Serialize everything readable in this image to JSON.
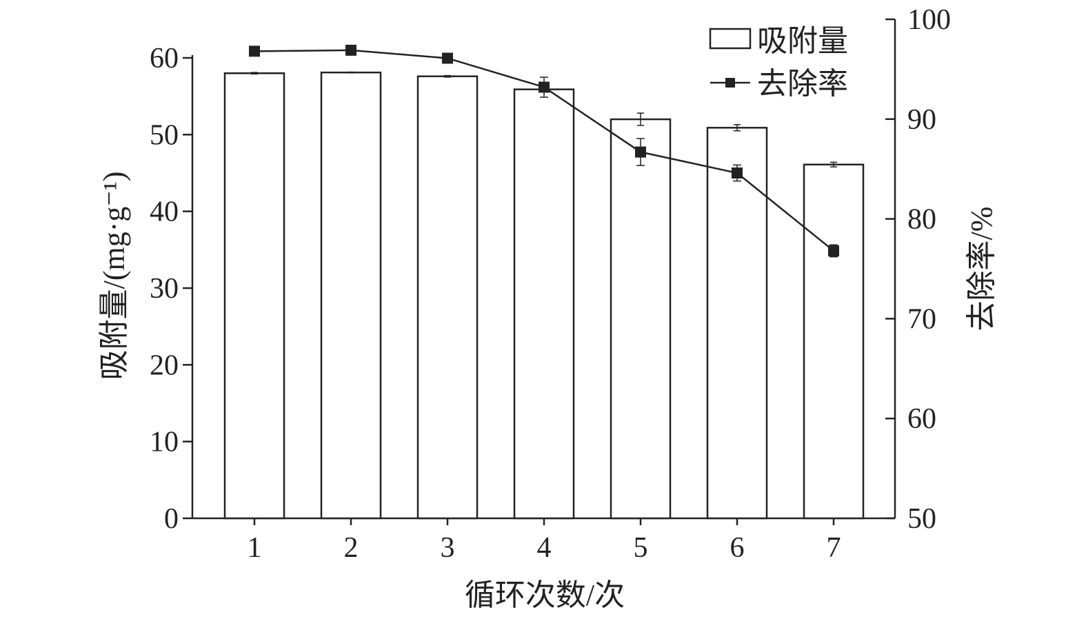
{
  "chart_data": {
    "type": "bar+line",
    "categories": [
      "1",
      "2",
      "3",
      "4",
      "5",
      "6",
      "7"
    ],
    "xlabel": "循环次数/次",
    "ylabel_left": "吸附量/(mg·g⁻¹)",
    "ylabel_right": "去除率/%",
    "ylim_left": [
      0,
      60
    ],
    "yticks_left": [
      0,
      10,
      20,
      30,
      40,
      50,
      60
    ],
    "ylim_right": [
      50,
      100
    ],
    "yticks_right": [
      50,
      60,
      70,
      80,
      90,
      100
    ],
    "legend_position": "top-right",
    "grid": false,
    "series": [
      {
        "name": "吸附量",
        "type": "bar",
        "axis": "left",
        "values": [
          58.0,
          58.1,
          57.6,
          55.9,
          52.0,
          50.9,
          46.1
        ],
        "errors": [
          0.1,
          0.05,
          0.1,
          0.1,
          0.8,
          0.4,
          0.3
        ]
      },
      {
        "name": "去除率",
        "type": "line",
        "axis": "right",
        "values": [
          96.8,
          96.9,
          96.1,
          93.2,
          86.7,
          84.6,
          76.8
        ],
        "errors": [
          0.1,
          0.1,
          0.1,
          1.0,
          1.35,
          0.8,
          0.6
        ]
      }
    ],
    "colors": {
      "bar_fill": "#ffffff",
      "stroke": "#222222",
      "marker": "#222222"
    }
  }
}
